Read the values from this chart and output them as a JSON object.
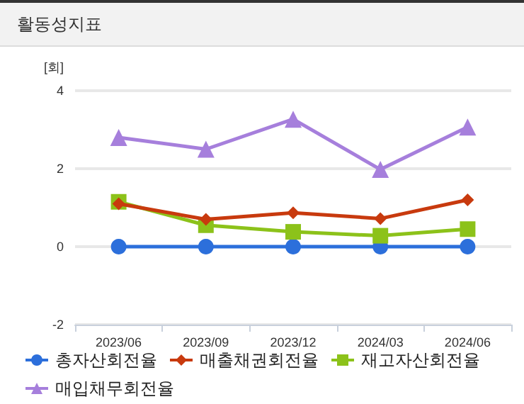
{
  "chart_data": {
    "type": "line",
    "title": "활동성지표",
    "ylabel": "[회]",
    "categories": [
      "2023/06",
      "2023/09",
      "2023/12",
      "2024/03",
      "2024/06"
    ],
    "series": [
      {
        "name": "총자산회전율",
        "color": "#2c6fdb",
        "marker": "circle",
        "values": [
          0,
          0,
          0,
          0,
          0
        ]
      },
      {
        "name": "매출채권회전율",
        "color": "#c83a0e",
        "marker": "diamond",
        "values": [
          1.1,
          0.7,
          0.87,
          0.72,
          1.2
        ]
      },
      {
        "name": "재고자산회전율",
        "color": "#8cc21a",
        "marker": "square",
        "values": [
          1.15,
          0.55,
          0.38,
          0.28,
          0.45
        ]
      },
      {
        "name": "매입채무회전율",
        "color": "#a67fdc",
        "marker": "triangle",
        "values": [
          2.8,
          2.5,
          3.27,
          1.98,
          3.07
        ]
      }
    ],
    "ylim": [
      -2,
      4
    ],
    "yticks": [
      -2,
      0,
      2,
      4
    ],
    "grid": "y",
    "legend": "bottom"
  }
}
